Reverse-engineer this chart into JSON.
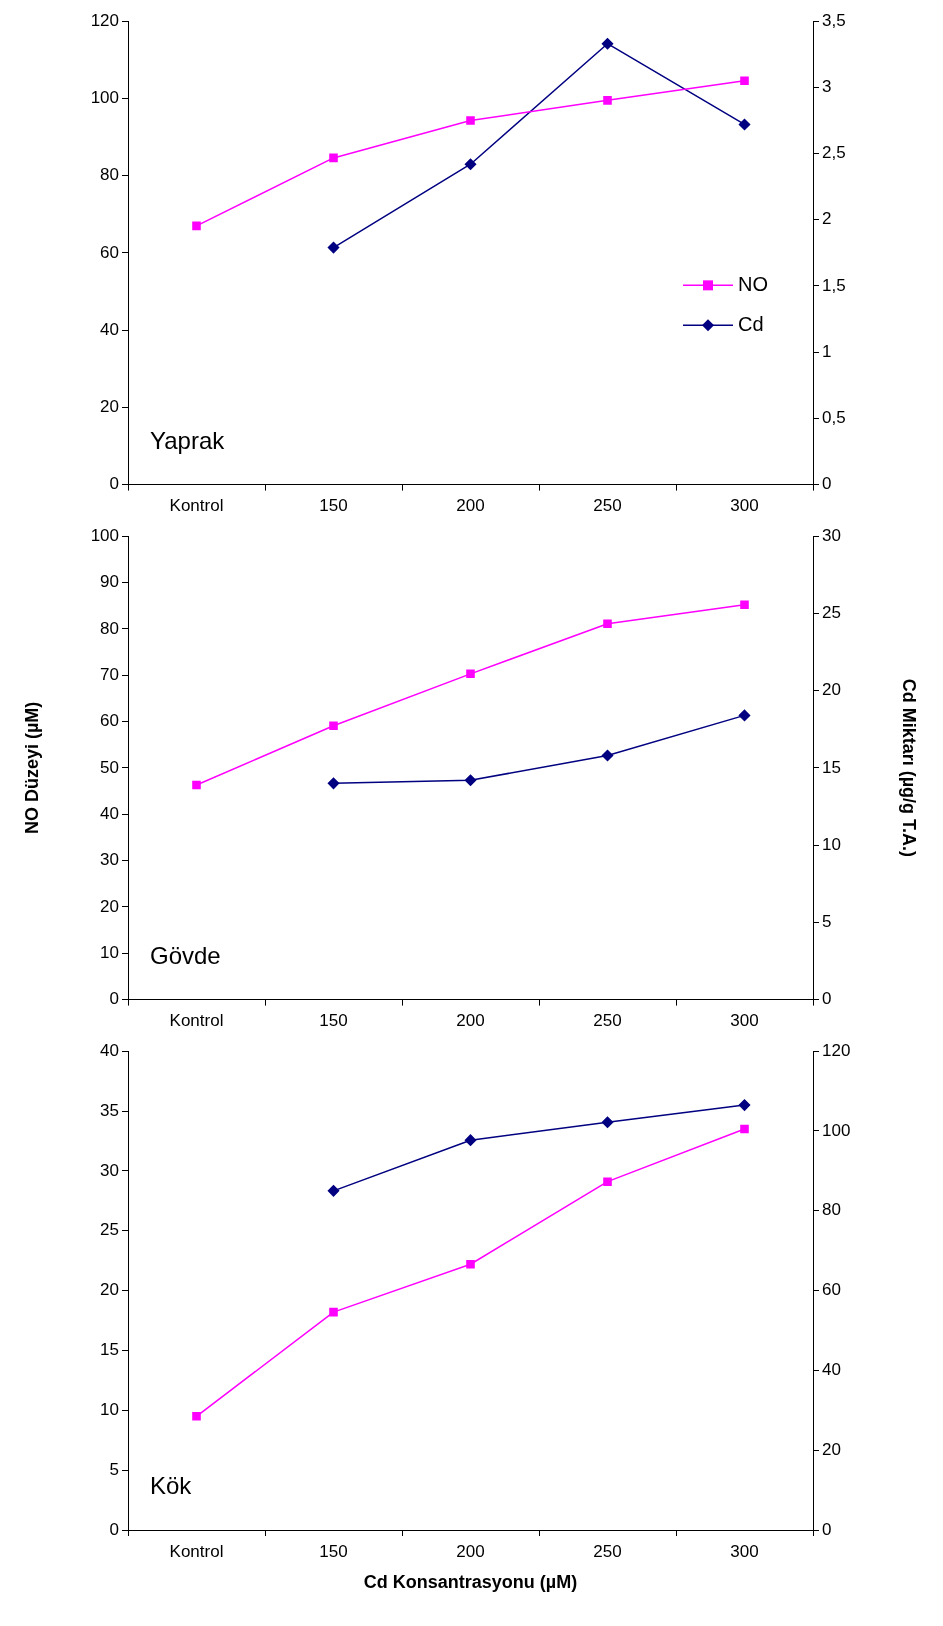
{
  "chart_data": [
    {
      "type": "line",
      "categories": [
        "Kontrol",
        "150",
        "200",
        "250",
        "300"
      ],
      "annotations": [
        "Yaprak"
      ],
      "legend": "right",
      "ylim": [
        0,
        120
      ],
      "yticks": [
        0,
        20,
        40,
        60,
        80,
        100,
        120
      ],
      "y2lim": [
        0,
        3.5
      ],
      "y2ticks": [
        0,
        {
          "value": 0.5,
          "label": "0,5"
        },
        1,
        {
          "value": 1.5,
          "label": "1,5"
        },
        2,
        {
          "value": 2.5,
          "label": "2,5"
        },
        3,
        {
          "value": 3.5,
          "label": "3,5"
        }
      ],
      "grid": false,
      "series": [
        {
          "name": "NO",
          "color": "#ff00ff",
          "marker": "square",
          "values": [
            67,
            84.6,
            94.3,
            99.5,
            104.6
          ]
        },
        {
          "name": "Cd",
          "color": "#000080",
          "marker": "diamond",
          "axis": "y2",
          "values": [
            null,
            1.79,
            2.42,
            3.33,
            2.72
          ]
        }
      ]
    },
    {
      "type": "line",
      "categories": [
        "Kontrol",
        "150",
        "200",
        "250",
        "300"
      ],
      "annotations": [
        "Gövde"
      ],
      "ylabel": "NO Düzeyi (µM)",
      "y2label": "Cd Miktarı (µg/g T.A.)",
      "legend": false,
      "ylim": [
        0,
        100
      ],
      "yticks": [
        0,
        10,
        20,
        30,
        40,
        50,
        60,
        70,
        80,
        90,
        100
      ],
      "y2lim": [
        0,
        30
      ],
      "y2ticks": [
        0,
        5,
        10,
        15,
        20,
        25,
        30
      ],
      "grid": false,
      "series": [
        {
          "color": "#ff00ff",
          "marker": "square",
          "values": [
            46.3,
            59.1,
            70.3,
            81.1,
            85.2
          ]
        },
        {
          "color": "#000080",
          "marker": "diamond",
          "axis": "y2",
          "values": [
            null,
            14.0,
            14.2,
            15.8,
            18.4
          ]
        }
      ]
    },
    {
      "type": "line",
      "categories": [
        "Kontrol",
        "150",
        "200",
        "250",
        "300"
      ],
      "annotations": [
        "Kök"
      ],
      "xlabel": "Cd Konsantrasyonu (µM)",
      "legend": false,
      "ylim": [
        0,
        40
      ],
      "yticks": [
        0,
        5,
        10,
        15,
        20,
        25,
        30,
        35,
        40
      ],
      "y2lim": [
        0,
        120
      ],
      "y2ticks": [
        0,
        20,
        40,
        60,
        80,
        100,
        120
      ],
      "grid": false,
      "series": [
        {
          "color": "#ff00ff",
          "marker": "square",
          "values": [
            9.5,
            18.2,
            22.2,
            29.1,
            33.5
          ]
        },
        {
          "color": "#000080",
          "marker": "diamond",
          "axis": "y2",
          "values": [
            null,
            85.0,
            97.7,
            102.2,
            106.5
          ]
        }
      ]
    }
  ]
}
